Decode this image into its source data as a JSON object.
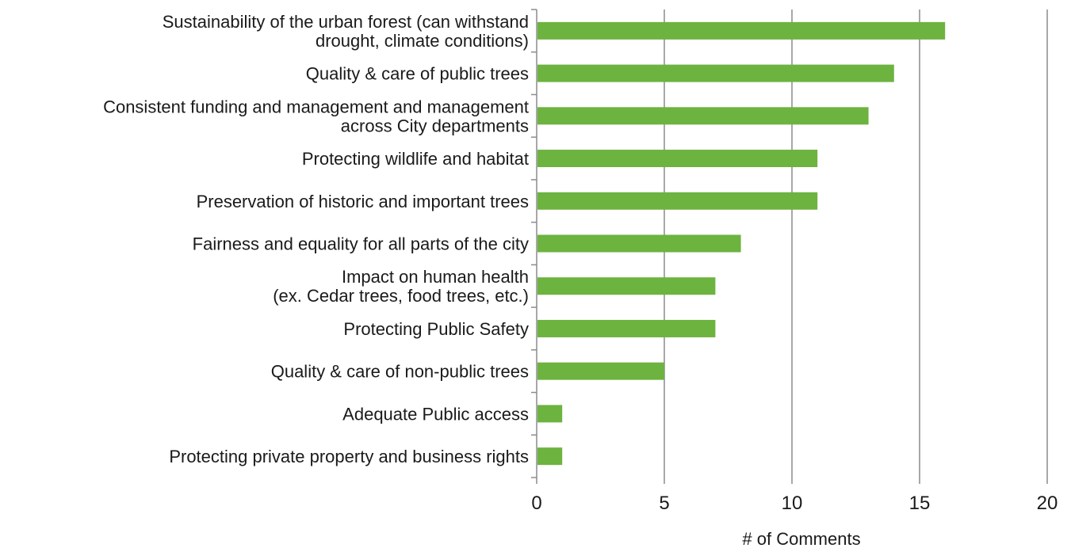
{
  "chart_data": {
    "type": "bar",
    "orientation": "horizontal",
    "categories": [
      [
        "Sustainability of the urban forest (can withstand",
        "drought, climate conditions)"
      ],
      [
        "Quality & care of public trees"
      ],
      [
        "Consistent funding and management and management",
        "across City departments"
      ],
      [
        "Protecting wildlife and habitat"
      ],
      [
        "Preservation of historic and important trees"
      ],
      [
        "Fairness and equality for all parts of the city"
      ],
      [
        "Impact on human health",
        "(ex. Cedar trees, food trees, etc.)"
      ],
      [
        "Protecting Public Safety"
      ],
      [
        "Quality & care of non-public trees"
      ],
      [
        "Adequate Public access"
      ],
      [
        "Protecting private property and business rights"
      ]
    ],
    "values": [
      16,
      14,
      13,
      11,
      11,
      8,
      7,
      7,
      5,
      1,
      1
    ],
    "xlim": [
      0,
      20
    ],
    "xticks": [
      0,
      5,
      10,
      15,
      20
    ],
    "xlabel": "# of Comments",
    "ylabel": "",
    "title": "",
    "grid": "vertical",
    "legend": "none",
    "colors": {
      "bar": "#6db33f",
      "grid": "#8c8c8c",
      "axis": "#8c8c8c",
      "text": "#1a1a1a"
    }
  }
}
